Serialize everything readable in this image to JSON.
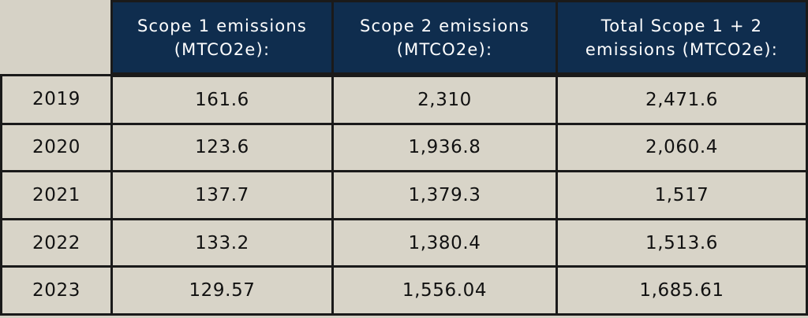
{
  "table": {
    "headers": [
      "Scope 1 emissions (MTCO2e):",
      "Scope 2 emissions (MTCO2e):",
      "Total Scope 1 + 2 emissions (MTCO2e):"
    ],
    "rows": [
      {
        "year": "2019",
        "scope1": "161.6",
        "scope2": "2,310",
        "total": "2,471.6"
      },
      {
        "year": "2020",
        "scope1": "123.6",
        "scope2": "1,936.8",
        "total": "2,060.4"
      },
      {
        "year": "2021",
        "scope1": "137.7",
        "scope2": "1,379.3",
        "total": "1,517"
      },
      {
        "year": "2022",
        "scope1": "133.2",
        "scope2": "1,380.4",
        "total": "1,513.6"
      },
      {
        "year": "2023",
        "scope1": "129.57",
        "scope2": "1,556.04",
        "total": "1,685.61"
      }
    ]
  },
  "colors": {
    "page_background": "#d6d2c6",
    "header_background": "#0f2d4e",
    "header_text": "#ffffff",
    "cell_background": "#d8d4c8",
    "border": "#1a1a1a"
  }
}
